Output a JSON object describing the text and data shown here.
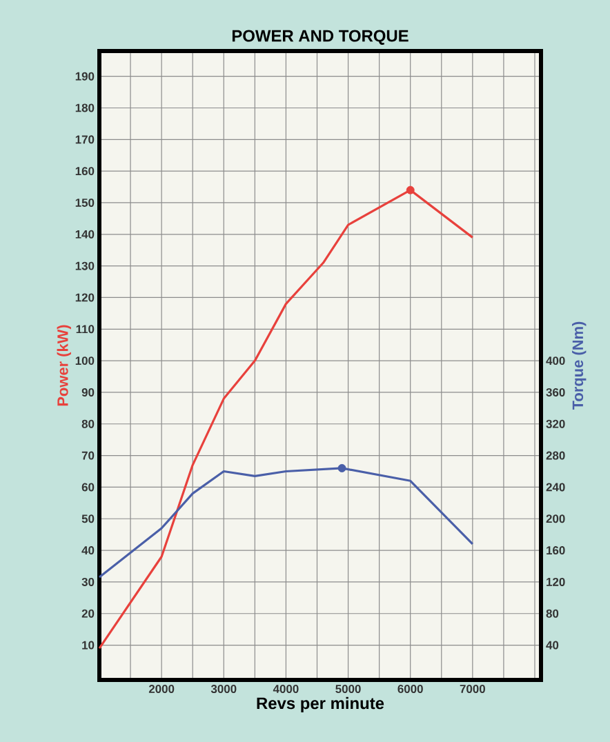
{
  "chart_data": {
    "type": "line",
    "title": "POWER AND TORQUE",
    "xlabel": "Revs per minute",
    "ylabel": "Power (kW)",
    "y2label": "Torque (Nm)",
    "xlim": [
      1000,
      8100
    ],
    "ylim": [
      -1,
      198
    ],
    "y2lim": [
      -4,
      792
    ],
    "xticks": [
      {
        "value": 1500,
        "label": null
      },
      2000,
      {
        "value": 2500,
        "label": null
      },
      3000,
      {
        "value": 3500,
        "label": null
      },
      4000,
      {
        "value": 4500,
        "label": null
      },
      5000,
      {
        "value": 5500,
        "label": null
      },
      6000,
      {
        "value": 6500,
        "label": null
      },
      7000,
      {
        "value": 7500,
        "label": null
      },
      {
        "value": 8000,
        "label": null
      }
    ],
    "yticks": [
      10,
      20,
      30,
      40,
      50,
      60,
      70,
      80,
      90,
      100,
      110,
      120,
      130,
      140,
      150,
      160,
      170,
      180,
      190
    ],
    "y2ticks": [
      40,
      80,
      120,
      160,
      200,
      240,
      280,
      320,
      360,
      400
    ],
    "grid": true,
    "series": [
      {
        "color": "#e8413c",
        "x": [
          1000,
          2000,
          2500,
          3000,
          3500,
          4000,
          4600,
          5000,
          6000,
          7000
        ],
        "values": [
          9,
          38,
          67,
          88,
          100,
          118,
          131,
          143,
          154,
          139
        ]
      },
      {
        "axis": "y2",
        "color": "#4a5fa8",
        "x": [
          1000,
          2000,
          2500,
          3000,
          3500,
          4000,
          4900,
          6000,
          7000
        ],
        "values": [
          126,
          188,
          232,
          260,
          254,
          260,
          264,
          248,
          168
        ]
      },
      {
        "type": "scatter",
        "marker": "circle",
        "color": "#e8413c",
        "x": [
          6000
        ],
        "values": [
          154
        ]
      },
      {
        "type": "scatter",
        "marker": "circle",
        "axis": "y2",
        "color": "#4a5fa8",
        "x": [
          4900
        ],
        "values": [
          264
        ]
      }
    ]
  }
}
